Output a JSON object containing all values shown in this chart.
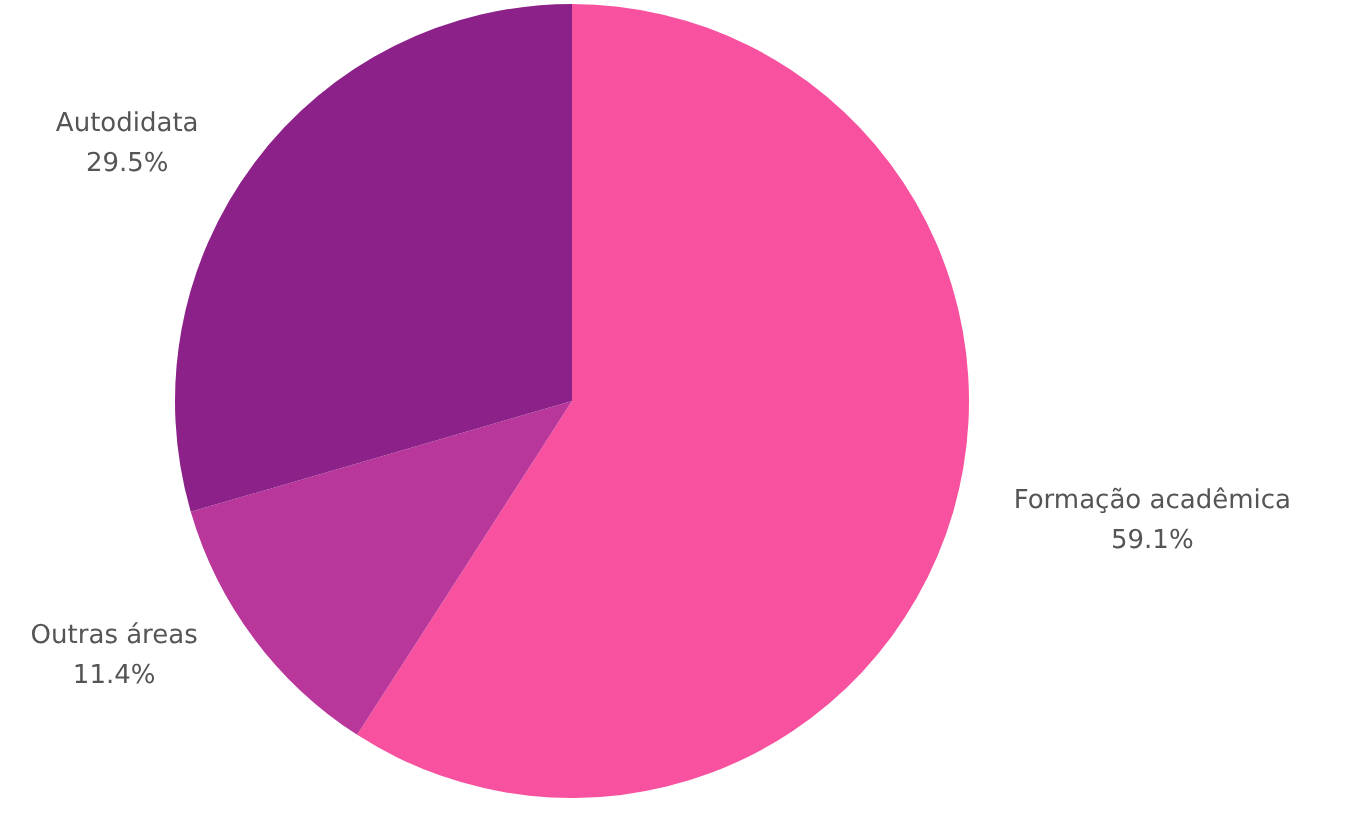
{
  "chart_data": {
    "type": "pie",
    "categories": [
      "Formação acadêmica",
      "Outras áreas",
      "Autodidata"
    ],
    "values": [
      59.1,
      11.4,
      29.5
    ],
    "value_labels": [
      "59.1%",
      "11.4%",
      "29.5%"
    ],
    "colors": [
      "#f7519f",
      "#b9369b",
      "#8b2189"
    ],
    "legend": false
  }
}
